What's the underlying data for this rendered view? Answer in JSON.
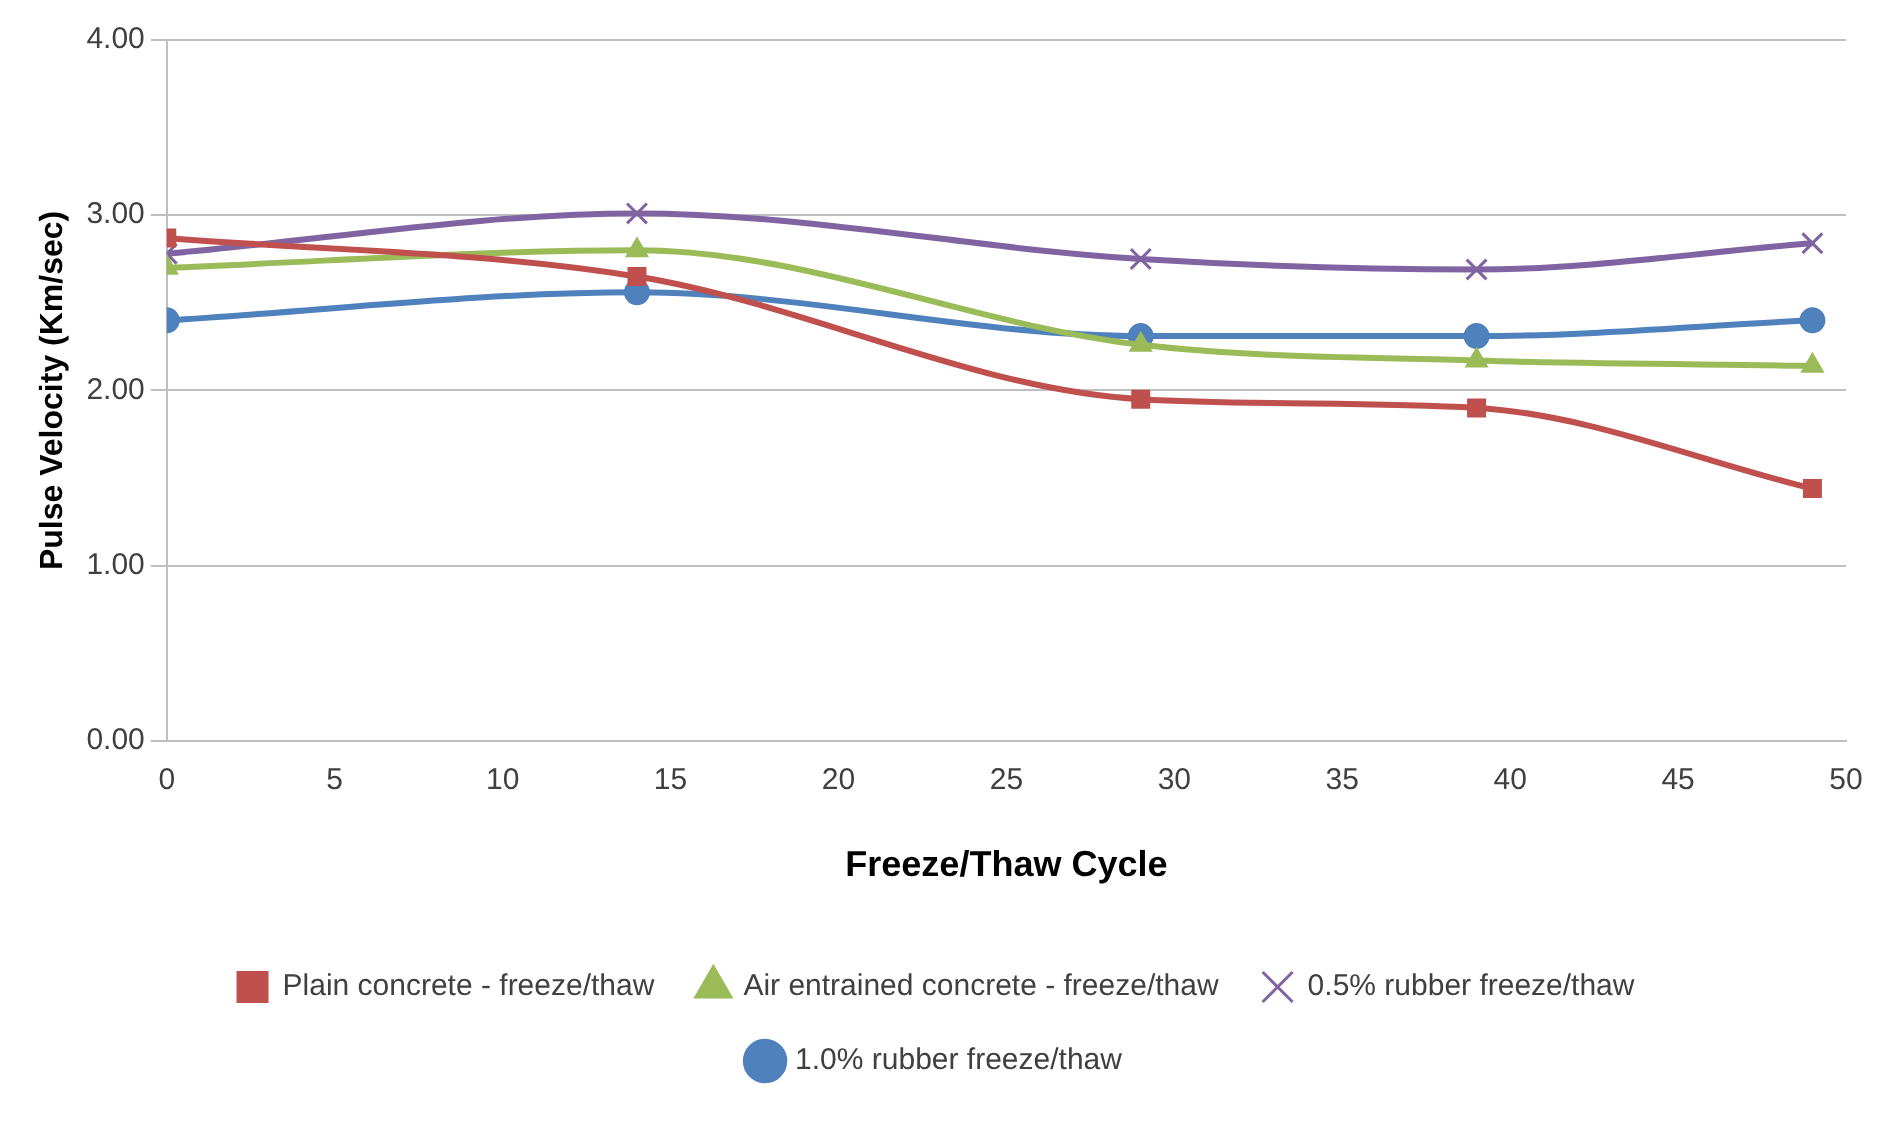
{
  "chart_data": {
    "type": "line",
    "xlabel": "Freeze/Thaw Cycle",
    "ylabel": "Pulse Velocity (Km/sec)",
    "x": [
      0,
      14,
      29,
      39,
      49
    ],
    "xlim": [
      0,
      50
    ],
    "xticks": [
      0,
      5,
      10,
      15,
      20,
      25,
      30,
      35,
      40,
      45,
      50
    ],
    "ylim": [
      0,
      4
    ],
    "yticks": [
      {
        "value": 0,
        "label": "0.00"
      },
      {
        "value": 1,
        "label": "1.00"
      },
      {
        "value": 2,
        "label": "2.00"
      },
      {
        "value": 3,
        "label": "3.00"
      },
      {
        "value": 4,
        "label": "4.00"
      }
    ],
    "grid": "y",
    "legend": "bottom",
    "series": [
      {
        "name": "Plain concrete - freeze/thaw",
        "color": "#c0504d",
        "marker": "square",
        "values": [
          2.87,
          2.65,
          1.95,
          1.9,
          1.44
        ]
      },
      {
        "name": "Air entrained concrete - freeze/thaw",
        "color": "#9bbb59",
        "marker": "triangle",
        "values": [
          2.7,
          2.8,
          2.26,
          2.17,
          2.14
        ]
      },
      {
        "name": "0.5% rubber freeze/thaw",
        "color": "#8064a2",
        "marker": "cross",
        "values": [
          2.78,
          3.01,
          2.75,
          2.69,
          2.84
        ]
      },
      {
        "name": "1.0% rubber freeze/thaw",
        "color": "#4f81bd",
        "marker": "circle",
        "values": [
          2.4,
          2.56,
          2.31,
          2.31,
          2.4
        ]
      }
    ]
  }
}
